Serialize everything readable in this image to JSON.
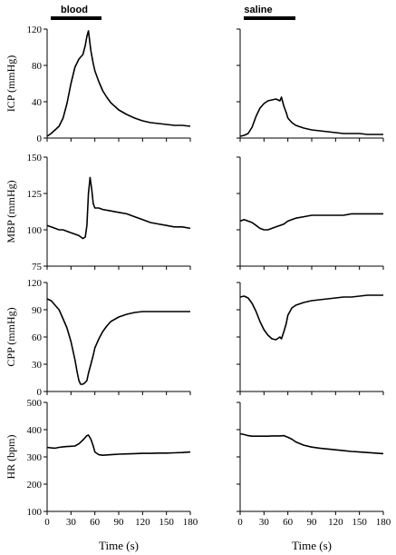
{
  "chart_data": {
    "type": "line",
    "grid": false,
    "columns": [
      {
        "label": "blood",
        "bar": [
          5,
          70
        ],
        "xlabel": "Time (s)"
      },
      {
        "label": "saline",
        "bar": [
          5,
          72
        ],
        "xlabel": "Time (s)"
      }
    ],
    "x_axis": {
      "range": [
        0,
        180
      ],
      "ticks": [
        "0",
        "30",
        "60",
        "90",
        "120",
        "150",
        "180"
      ]
    },
    "rows": [
      {
        "ylabel": "ICP (mmHg)",
        "ylim": [
          0,
          120
        ],
        "ticks": [
          "0",
          "40",
          "80",
          "120"
        ],
        "series": [
          {
            "name": "",
            "x": [
              0,
              5,
              10,
              15,
              20,
              25,
              30,
              35,
              40,
              45,
              48,
              50,
              52,
              55,
              58,
              60,
              65,
              70,
              75,
              80,
              90,
              100,
              110,
              120,
              130,
              140,
              150,
              160,
              170,
              180
            ],
            "y": [
              2,
              5,
              9,
              13,
              22,
              38,
              60,
              78,
              87,
              92,
              102,
              112,
              118,
              96,
              82,
              74,
              62,
              52,
              45,
              39,
              31,
              26,
              22,
              19,
              17,
              16,
              15,
              14,
              14,
              13
            ]
          },
          {
            "name": "",
            "x": [
              0,
              5,
              10,
              15,
              20,
              25,
              30,
              35,
              40,
              45,
              50,
              52,
              55,
              58,
              60,
              65,
              70,
              80,
              90,
              100,
              110,
              120,
              130,
              140,
              150,
              160,
              170,
              180
            ],
            "y": [
              2,
              3,
              5,
              12,
              24,
              33,
              38,
              41,
              42,
              43,
              41,
              45,
              35,
              28,
              22,
              17,
              14,
              11,
              9,
              8,
              7,
              6,
              5,
              5,
              5,
              4,
              4,
              4
            ]
          }
        ]
      },
      {
        "ylabel": "MBP (mmHg)",
        "ylim": [
          75,
          150
        ],
        "ticks": [
          "75",
          "100",
          "125",
          "150"
        ],
        "series": [
          {
            "name": "",
            "x": [
              0,
              5,
              10,
              15,
              20,
              25,
              30,
              35,
              40,
              45,
              48,
              50,
              52,
              54,
              56,
              58,
              60,
              65,
              70,
              80,
              90,
              100,
              110,
              120,
              130,
              140,
              150,
              160,
              170,
              180
            ],
            "y": [
              103,
              102,
              101,
              100,
              100,
              99,
              98,
              97,
              96,
              94,
              95,
              103,
              125,
              136,
              128,
              118,
              115,
              115,
              114,
              113,
              112,
              111,
              109,
              107,
              105,
              104,
              103,
              102,
              102,
              101
            ]
          },
          {
            "name": "",
            "x": [
              0,
              5,
              10,
              15,
              20,
              25,
              30,
              35,
              40,
              45,
              50,
              55,
              60,
              65,
              70,
              80,
              90,
              100,
              110,
              120,
              130,
              140,
              150,
              160,
              170,
              180
            ],
            "y": [
              106,
              107,
              106,
              105,
              103,
              101,
              100,
              100,
              101,
              102,
              103,
              104,
              106,
              107,
              108,
              109,
              110,
              110,
              110,
              110,
              110,
              111,
              111,
              111,
              111,
              111
            ]
          }
        ]
      },
      {
        "ylabel": "CPP (mmHg)",
        "ylim": [
          0,
          120
        ],
        "ticks": [
          "0",
          "30",
          "60",
          "90",
          "120"
        ],
        "series": [
          {
            "name": "",
            "x": [
              0,
              5,
              10,
              15,
              20,
              25,
              30,
              35,
              38,
              40,
              42,
              45,
              48,
              50,
              52,
              55,
              58,
              60,
              65,
              70,
              75,
              80,
              90,
              100,
              110,
              120,
              130,
              140,
              150,
              160,
              170,
              180
            ],
            "y": [
              102,
              100,
              95,
              90,
              80,
              70,
              55,
              35,
              20,
              12,
              8,
              8,
              10,
              12,
              20,
              30,
              40,
              48,
              58,
              66,
              72,
              77,
              82,
              85,
              87,
              88,
              88,
              88,
              88,
              88,
              88,
              88
            ]
          },
          {
            "name": "",
            "x": [
              0,
              5,
              10,
              15,
              20,
              25,
              30,
              35,
              40,
              45,
              50,
              52,
              55,
              58,
              60,
              65,
              70,
              80,
              90,
              100,
              110,
              120,
              130,
              140,
              150,
              160,
              170,
              180
            ],
            "y": [
              104,
              105,
              103,
              97,
              88,
              77,
              68,
              62,
              58,
              57,
              60,
              58,
              66,
              75,
              84,
              92,
              95,
              98,
              100,
              101,
              102,
              103,
              104,
              104,
              105,
              106,
              106,
              106
            ]
          }
        ]
      },
      {
        "ylabel": "HR (bpm)",
        "ylim": [
          100,
          500
        ],
        "ticks": [
          "100",
          "200",
          "300",
          "400",
          "500"
        ],
        "series": [
          {
            "name": "",
            "x": [
              0,
              5,
              10,
              15,
              20,
              25,
              30,
              35,
              40,
              45,
              50,
              52,
              55,
              58,
              60,
              65,
              70,
              80,
              90,
              100,
              110,
              120,
              130,
              140,
              150,
              160,
              170,
              180
            ],
            "y": [
              335,
              333,
              332,
              335,
              337,
              338,
              339,
              340,
              348,
              362,
              378,
              380,
              365,
              340,
              318,
              308,
              306,
              308,
              310,
              311,
              312,
              313,
              313,
              314,
              314,
              315,
              316,
              318
            ]
          },
          {
            "name": "",
            "x": [
              0,
              5,
              10,
              15,
              20,
              25,
              30,
              35,
              40,
              45,
              50,
              55,
              60,
              65,
              70,
              80,
              90,
              100,
              110,
              120,
              130,
              140,
              150,
              160,
              170,
              180
            ],
            "y": [
              385,
              382,
              378,
              376,
              376,
              376,
              376,
              376,
              377,
              377,
              377,
              378,
              372,
              365,
              355,
              343,
              336,
              332,
              329,
              326,
              323,
              320,
              318,
              316,
              314,
              312
            ]
          }
        ]
      }
    ]
  }
}
